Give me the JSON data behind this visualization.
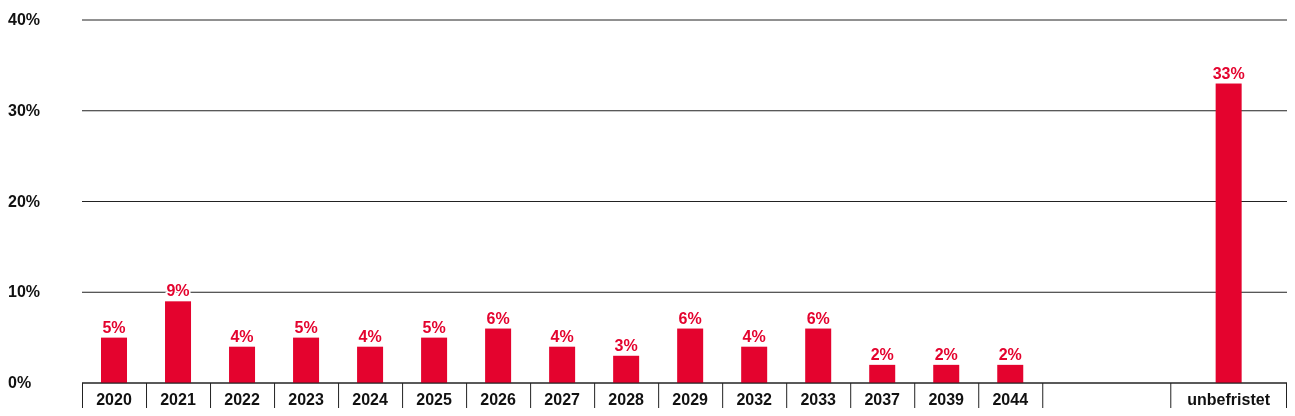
{
  "chart_data": {
    "type": "bar",
    "categories": [
      "2020",
      "2021",
      "2022",
      "2023",
      "2024",
      "2025",
      "2026",
      "2027",
      "2028",
      "2029",
      "2032",
      "2033",
      "2037",
      "2039",
      "2044",
      null,
      null,
      "unbefristet"
    ],
    "values": [
      5,
      9,
      4,
      5,
      4,
      5,
      6,
      4,
      3,
      6,
      4,
      6,
      2,
      2,
      2,
      null,
      null,
      33
    ],
    "color": "#e4032e",
    "ylim": [
      0,
      40
    ],
    "yticks": [
      {
        "value": 0,
        "label": "0%"
      },
      {
        "value": 10,
        "label": "10%"
      },
      {
        "value": 20,
        "label": "20%"
      },
      {
        "value": 30,
        "label": "30%"
      },
      {
        "value": 40,
        "label": "40%"
      }
    ],
    "grid": "y",
    "value_labels": [
      "5%",
      "9%",
      "4%",
      "5%",
      "4%",
      "5%",
      "6%",
      "4%",
      "3%",
      "6%",
      "4%",
      "6%",
      "2%",
      "2%",
      "2%",
      null,
      null,
      "33%"
    ]
  }
}
